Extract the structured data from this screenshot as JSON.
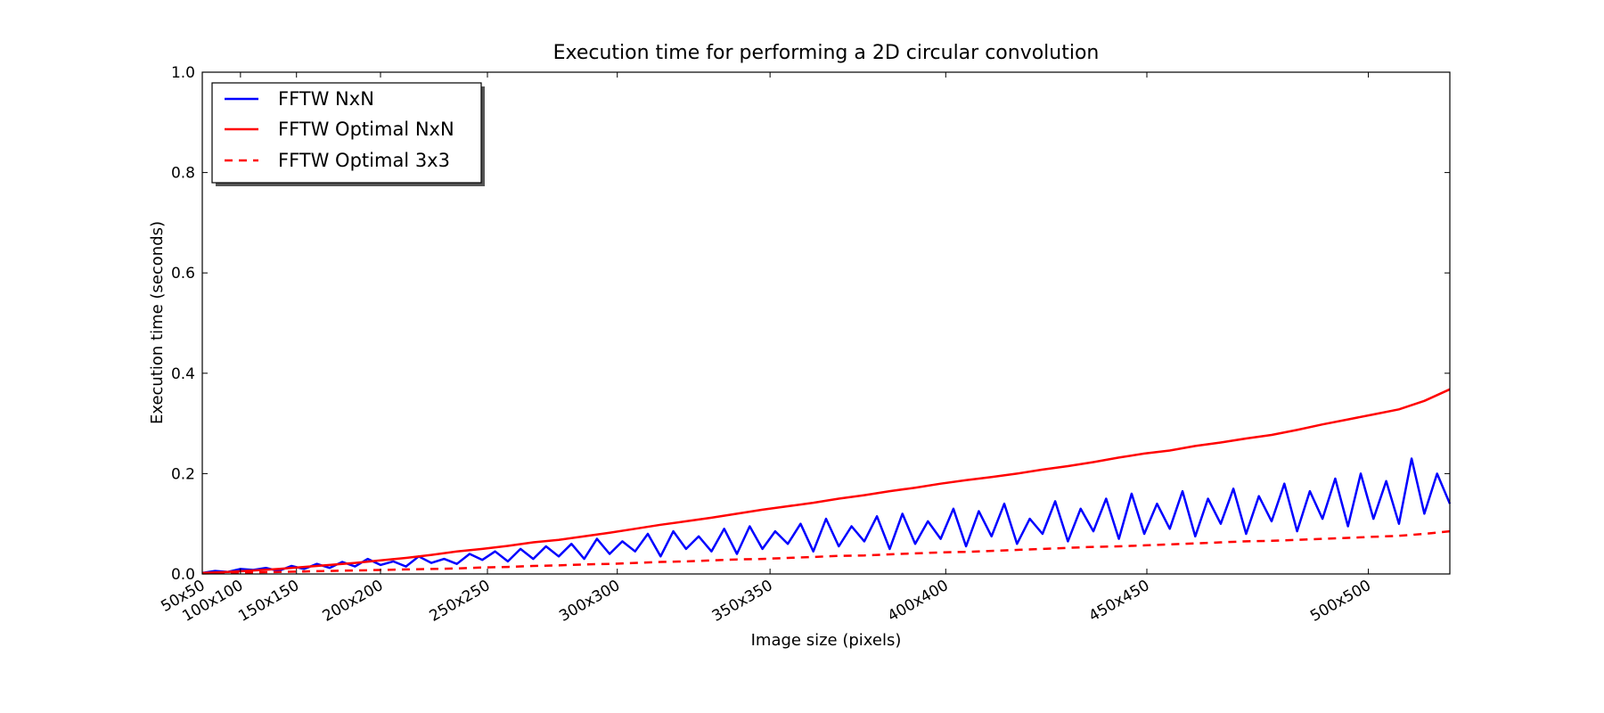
{
  "chart_data": {
    "type": "line",
    "title": "Execution time for performing a 2D circular convolution",
    "xlabel": "Image size (pixels)",
    "ylabel": "Execution time (seconds)",
    "xlim": [
      50,
      540
    ],
    "ylim": [
      0,
      1.0
    ],
    "yticks": [
      0.0,
      0.2,
      0.4,
      0.6,
      0.8,
      1.0
    ],
    "ytick_labels": [
      "0.0",
      "0.2",
      "0.4",
      "0.6",
      "0.8",
      "1.0"
    ],
    "xticks": [
      50,
      65,
      87,
      120,
      162,
      213,
      273,
      342,
      421,
      508
    ],
    "xtick_labels": [
      "50x50",
      "100x100",
      "150x150",
      "200x200",
      "250x250",
      "300x300",
      "350x350",
      "400x400",
      "450x450",
      "500x500"
    ],
    "grid": false,
    "legend_position": "upper-left",
    "colors": {
      "blue": "#0000ff",
      "red": "#ff0000"
    },
    "series": [
      {
        "name": "FFTW NxN",
        "color": "#0000ff",
        "style": "solid",
        "x": [
          50,
          55,
          60,
          65,
          70,
          75,
          80,
          85,
          90,
          95,
          100,
          105,
          110,
          115,
          120,
          125,
          130,
          135,
          140,
          145,
          150,
          155,
          160,
          165,
          170,
          175,
          180,
          185,
          190,
          195,
          200,
          205,
          210,
          215,
          220,
          225,
          230,
          235,
          240,
          245,
          250,
          255,
          260,
          265,
          270,
          275,
          280,
          285,
          290,
          295,
          300,
          305,
          310,
          315,
          320,
          325,
          330,
          335,
          340,
          345,
          350,
          355,
          360,
          365,
          370,
          375,
          380,
          385,
          390,
          395,
          400,
          405,
          410,
          415,
          420,
          425,
          430,
          435,
          440,
          445,
          450,
          455,
          460,
          465,
          470,
          475,
          480,
          485,
          490,
          495,
          500,
          505,
          510,
          515,
          520,
          525,
          530,
          535,
          540
        ],
        "y": [
          0.002,
          0.006,
          0.004,
          0.01,
          0.008,
          0.012,
          0.006,
          0.016,
          0.01,
          0.02,
          0.012,
          0.024,
          0.015,
          0.03,
          0.018,
          0.025,
          0.015,
          0.035,
          0.022,
          0.03,
          0.02,
          0.04,
          0.028,
          0.045,
          0.025,
          0.05,
          0.03,
          0.055,
          0.035,
          0.06,
          0.03,
          0.07,
          0.04,
          0.065,
          0.045,
          0.08,
          0.035,
          0.085,
          0.05,
          0.075,
          0.045,
          0.09,
          0.04,
          0.095,
          0.05,
          0.085,
          0.06,
          0.1,
          0.045,
          0.11,
          0.055,
          0.095,
          0.065,
          0.115,
          0.05,
          0.12,
          0.06,
          0.105,
          0.07,
          0.13,
          0.055,
          0.125,
          0.075,
          0.14,
          0.06,
          0.11,
          0.08,
          0.145,
          0.065,
          0.13,
          0.085,
          0.15,
          0.07,
          0.16,
          0.08,
          0.14,
          0.09,
          0.165,
          0.075,
          0.15,
          0.1,
          0.17,
          0.08,
          0.155,
          0.105,
          0.18,
          0.085,
          0.165,
          0.11,
          0.19,
          0.095,
          0.2,
          0.11,
          0.185,
          0.1,
          0.23,
          0.12,
          0.2,
          0.14
        ]
      },
      {
        "name": "FFTW Optimal NxN",
        "color": "#ff0000",
        "style": "solid",
        "x": [
          50,
          60,
          70,
          80,
          90,
          100,
          110,
          120,
          130,
          140,
          150,
          160,
          170,
          180,
          190,
          200,
          210,
          220,
          230,
          240,
          250,
          260,
          270,
          280,
          290,
          300,
          310,
          320,
          330,
          340,
          350,
          360,
          370,
          380,
          390,
          400,
          410,
          420,
          430,
          440,
          450,
          460,
          470,
          480,
          490,
          500,
          510,
          520,
          530,
          540
        ],
        "y": [
          0.002,
          0.004,
          0.007,
          0.01,
          0.014,
          0.018,
          0.022,
          0.027,
          0.032,
          0.038,
          0.045,
          0.05,
          0.056,
          0.063,
          0.068,
          0.075,
          0.082,
          0.09,
          0.098,
          0.105,
          0.112,
          0.12,
          0.128,
          0.135,
          0.142,
          0.15,
          0.157,
          0.165,
          0.172,
          0.18,
          0.187,
          0.193,
          0.2,
          0.208,
          0.215,
          0.223,
          0.232,
          0.24,
          0.246,
          0.255,
          0.262,
          0.27,
          0.277,
          0.287,
          0.298,
          0.308,
          0.318,
          0.328,
          0.345,
          0.368
        ]
      },
      {
        "name": "FFTW Optimal 3x3",
        "color": "#ff0000",
        "style": "dashed",
        "x": [
          50,
          60,
          70,
          80,
          90,
          100,
          110,
          120,
          130,
          140,
          150,
          160,
          170,
          180,
          190,
          200,
          210,
          220,
          230,
          240,
          250,
          260,
          270,
          280,
          290,
          300,
          310,
          320,
          330,
          340,
          350,
          360,
          370,
          380,
          390,
          400,
          410,
          420,
          430,
          440,
          450,
          460,
          470,
          480,
          490,
          500,
          510,
          520,
          530,
          540
        ],
        "y": [
          0.001,
          0.002,
          0.003,
          0.004,
          0.005,
          0.006,
          0.007,
          0.008,
          0.009,
          0.01,
          0.011,
          0.013,
          0.014,
          0.016,
          0.017,
          0.019,
          0.02,
          0.022,
          0.024,
          0.025,
          0.027,
          0.029,
          0.03,
          0.032,
          0.034,
          0.036,
          0.037,
          0.039,
          0.041,
          0.043,
          0.044,
          0.046,
          0.048,
          0.05,
          0.052,
          0.054,
          0.055,
          0.057,
          0.059,
          0.061,
          0.063,
          0.065,
          0.066,
          0.068,
          0.07,
          0.072,
          0.074,
          0.076,
          0.08,
          0.085
        ]
      }
    ]
  }
}
